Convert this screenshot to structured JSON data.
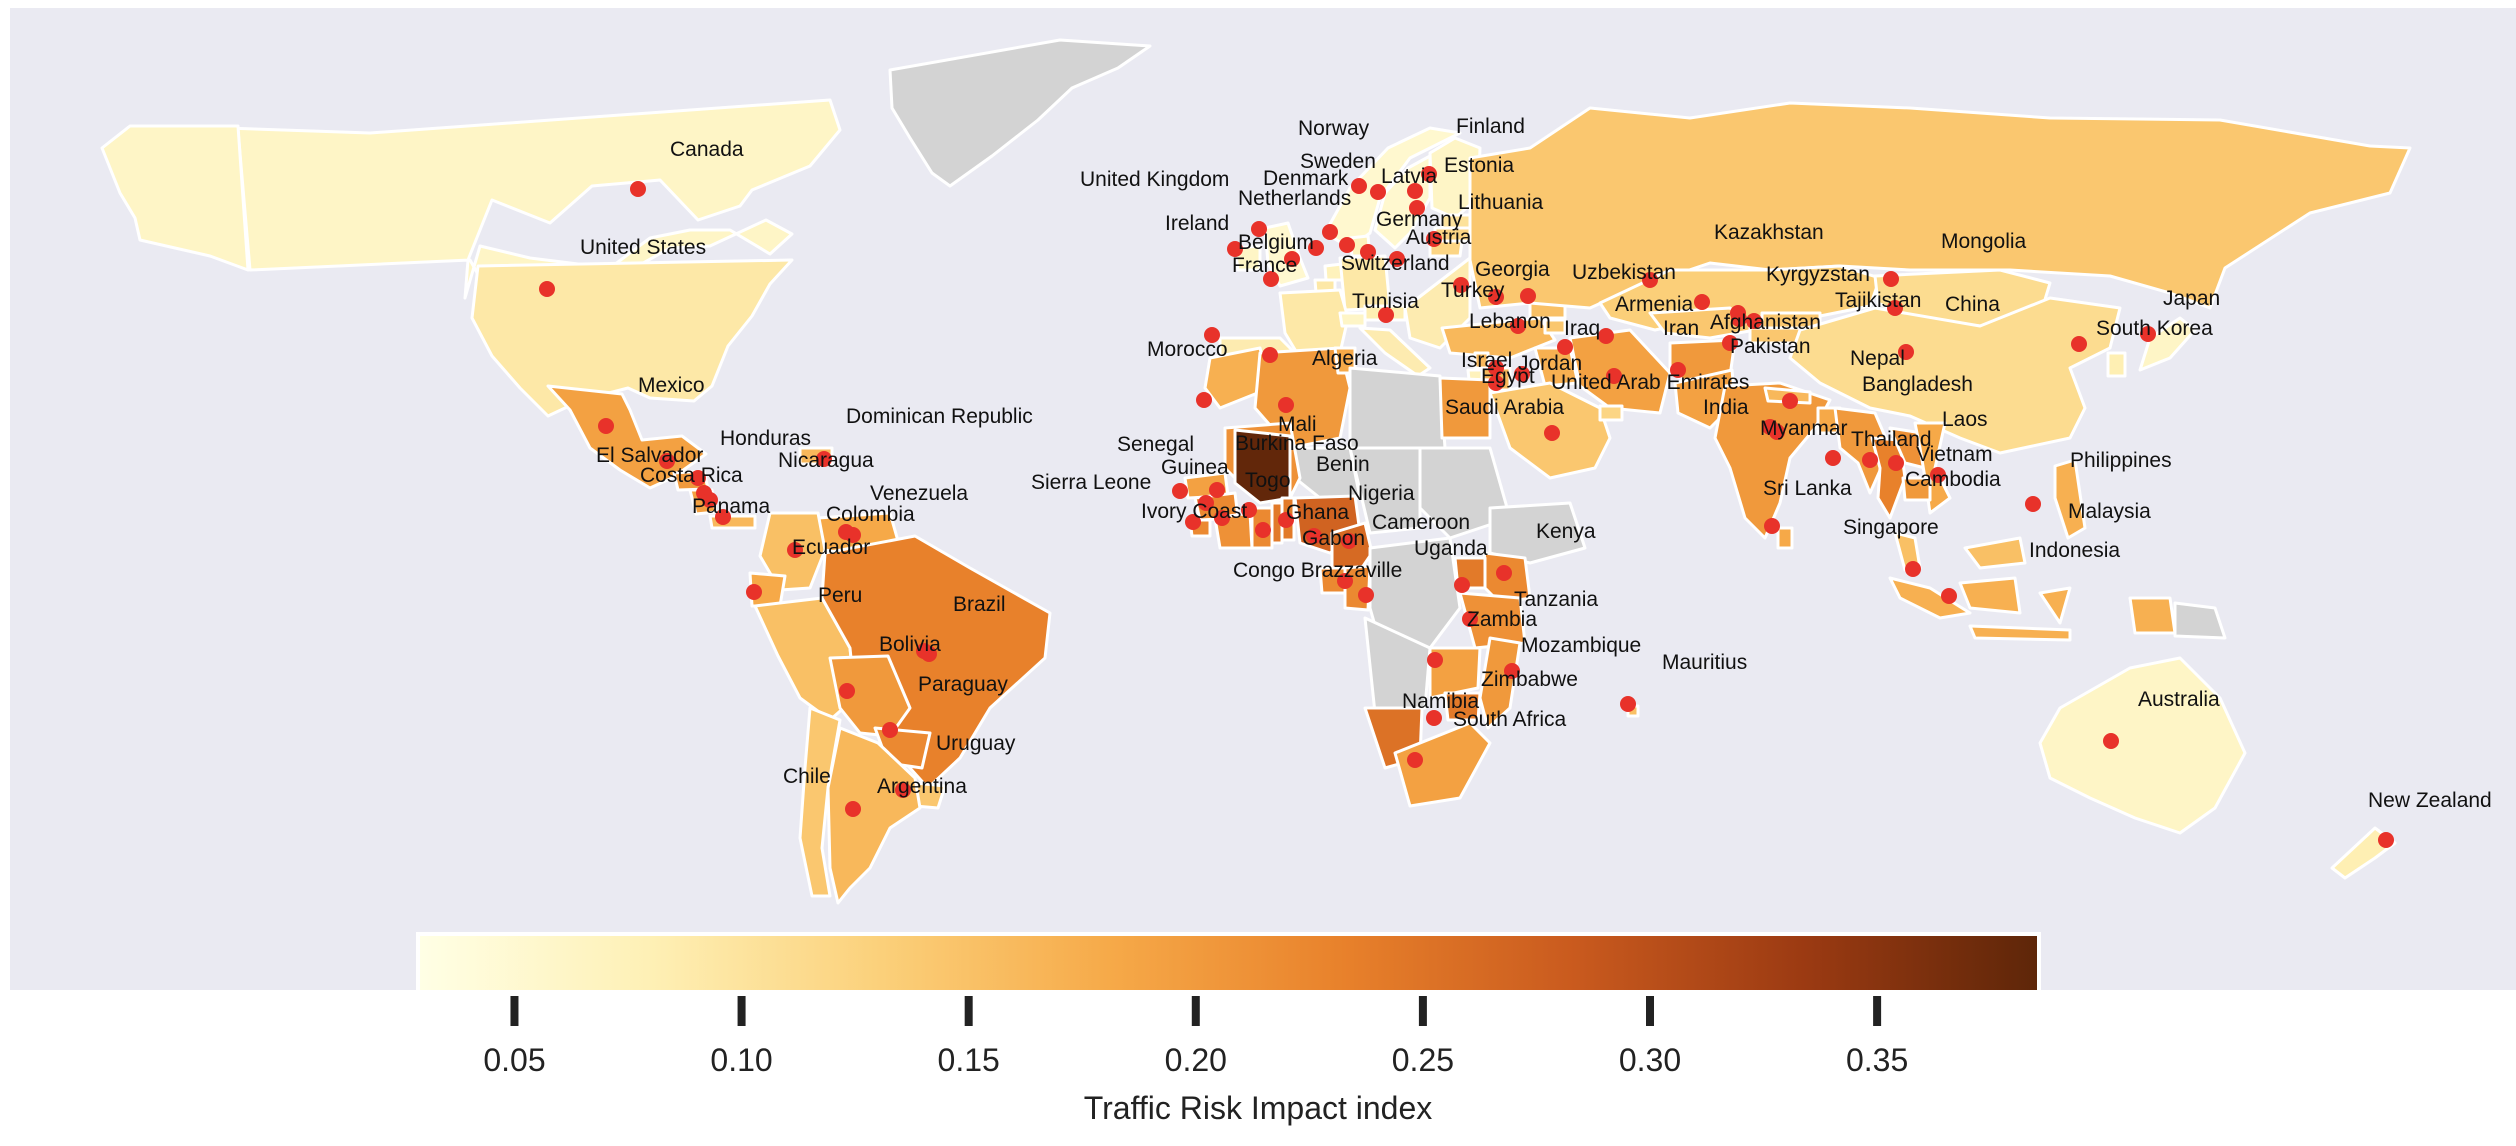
{
  "map": {
    "legend_title": "Traffic Risk Impact index",
    "colorbar": {
      "min": 0.027,
      "max": 0.383,
      "stops": [
        "#FFFFE5",
        "#FEF0B5",
        "#FBD07A",
        "#F6A948",
        "#E8812B",
        "#C95A1E",
        "#9B3A12",
        "#5E2609"
      ],
      "ticks": [
        "0.05",
        "0.10",
        "0.15",
        "0.20",
        "0.25",
        "0.30",
        "0.35"
      ]
    },
    "colors": {
      "no_data": "#D3D3D3",
      "ocean": "#EAEAF2",
      "dot": "#E8322A",
      "border": "#FFFFFF"
    },
    "countries": [
      {
        "name": "Canada",
        "value": 0.06,
        "show_label": true
      },
      {
        "name": "United States",
        "value": 0.09,
        "show_label": true
      },
      {
        "name": "Mexico",
        "value": 0.19,
        "show_label": true
      },
      {
        "name": "Honduras",
        "value": 0.2,
        "show_label": true
      },
      {
        "name": "Dominican Republic",
        "value": 0.16,
        "show_label": true
      },
      {
        "name": "El Salvador",
        "value": 0.19,
        "show_label": true
      },
      {
        "name": "Nicaragua",
        "value": 0.19,
        "show_label": true
      },
      {
        "name": "Costa Rica",
        "value": 0.15,
        "show_label": true
      },
      {
        "name": "Venezuela",
        "value": 0.18,
        "show_label": true
      },
      {
        "name": "Panama",
        "value": 0.16,
        "show_label": true
      },
      {
        "name": "Colombia",
        "value": 0.15,
        "show_label": true
      },
      {
        "name": "Ecuador",
        "value": 0.18,
        "show_label": true
      },
      {
        "name": "Peru",
        "value": 0.15,
        "show_label": true
      },
      {
        "name": "Brazil",
        "value": 0.23,
        "show_label": true
      },
      {
        "name": "Bolivia",
        "value": 0.2,
        "show_label": true
      },
      {
        "name": "Paraguay",
        "value": 0.22,
        "show_label": true
      },
      {
        "name": "Uruguay",
        "value": 0.14,
        "show_label": true
      },
      {
        "name": "Chile",
        "value": 0.14,
        "show_label": true
      },
      {
        "name": "Argentina",
        "value": 0.16,
        "show_label": true
      },
      {
        "name": "Norway",
        "value": 0.05,
        "show_label": true
      },
      {
        "name": "Finland",
        "value": 0.06,
        "show_label": true
      },
      {
        "name": "Sweden",
        "value": 0.05,
        "show_label": true
      },
      {
        "name": "Latvia",
        "value": 0.12,
        "show_label": true
      },
      {
        "name": "Estonia",
        "value": 0.1,
        "show_label": true
      },
      {
        "name": "United Kingdom",
        "value": 0.05,
        "show_label": true
      },
      {
        "name": "Denmark",
        "value": 0.07,
        "show_label": true
      },
      {
        "name": "Netherlands",
        "value": 0.07,
        "show_label": true
      },
      {
        "name": "Lithuania",
        "value": 0.12,
        "show_label": true
      },
      {
        "name": "Ireland",
        "value": 0.06,
        "show_label": true
      },
      {
        "name": "Germany",
        "value": 0.09,
        "show_label": true
      },
      {
        "name": "Belgium",
        "value": 0.09,
        "show_label": true
      },
      {
        "name": "Austria",
        "value": 0.08,
        "show_label": true
      },
      {
        "name": "France",
        "value": 0.09,
        "show_label": true
      },
      {
        "name": "Switzerland",
        "value": 0.06,
        "show_label": true
      },
      {
        "name": "Georgia",
        "value": 0.15,
        "show_label": true
      },
      {
        "name": "Uzbekistan",
        "value": 0.14,
        "show_label": true
      },
      {
        "name": "Turkey",
        "value": 0.16,
        "show_label": true
      },
      {
        "name": "Tunisia",
        "value": 0.18,
        "show_label": true
      },
      {
        "name": "Armenia",
        "value": 0.14,
        "show_label": true
      },
      {
        "name": "Lebanon",
        "value": 0.16,
        "show_label": true
      },
      {
        "name": "Iraq",
        "value": 0.17,
        "show_label": true
      },
      {
        "name": "Iran",
        "value": 0.19,
        "show_label": true
      },
      {
        "name": "Kazakhstan",
        "value": 0.13,
        "show_label": true
      },
      {
        "name": "Mongolia",
        "value": 0.11,
        "show_label": true
      },
      {
        "name": "Kyrgyzstan",
        "value": 0.14,
        "show_label": true
      },
      {
        "name": "Tajikistan",
        "value": 0.14,
        "show_label": true
      },
      {
        "name": "China",
        "value": 0.11,
        "show_label": true
      },
      {
        "name": "Japan",
        "value": 0.06,
        "show_label": true
      },
      {
        "name": "South Korea",
        "value": 0.08,
        "show_label": true
      },
      {
        "name": "Afghanistan",
        "value": 0.2,
        "show_label": true
      },
      {
        "name": "Pakistan",
        "value": 0.19,
        "show_label": true
      },
      {
        "name": "Nepal",
        "value": 0.16,
        "show_label": true
      },
      {
        "name": "Bangladesh",
        "value": 0.18,
        "show_label": true
      },
      {
        "name": "Israel",
        "value": 0.07,
        "show_label": true
      },
      {
        "name": "Jordan",
        "value": 0.16,
        "show_label": true
      },
      {
        "name": "Egypt",
        "value": 0.2,
        "show_label": true
      },
      {
        "name": "United Arab Emirates",
        "value": 0.12,
        "show_label": true
      },
      {
        "name": "India",
        "value": 0.2,
        "show_label": true
      },
      {
        "name": "Saudi Arabia",
        "value": 0.14,
        "show_label": true
      },
      {
        "name": "Morocco",
        "value": 0.17,
        "show_label": true
      },
      {
        "name": "Algeria",
        "value": 0.2,
        "show_label": true
      },
      {
        "name": "Mali",
        "value": 0.21,
        "show_label": true
      },
      {
        "name": "Senegal",
        "value": 0.19,
        "show_label": true
      },
      {
        "name": "Burkina Faso",
        "value": 0.38,
        "show_label": true
      },
      {
        "name": "Guinea",
        "value": 0.22,
        "show_label": true
      },
      {
        "name": "Benin",
        "value": 0.24,
        "show_label": true
      },
      {
        "name": "Sierra Leone",
        "value": 0.22,
        "show_label": true
      },
      {
        "name": "Togo",
        "value": 0.24,
        "show_label": true
      },
      {
        "name": "Nigeria",
        "value": 0.27,
        "show_label": true
      },
      {
        "name": "Ivory Coast",
        "value": 0.21,
        "show_label": true
      },
      {
        "name": "Ghana",
        "value": 0.22,
        "show_label": true
      },
      {
        "name": "Cameroon",
        "value": 0.26,
        "show_label": true
      },
      {
        "name": "Gabon",
        "value": 0.22,
        "show_label": true
      },
      {
        "name": "Kenya",
        "value": 0.22,
        "show_label": true
      },
      {
        "name": "Congo Brazzaville",
        "value": 0.22,
        "show_label": true
      },
      {
        "name": "Uganda",
        "value": 0.24,
        "show_label": true
      },
      {
        "name": "Tanzania",
        "value": 0.21,
        "show_label": true
      },
      {
        "name": "Zambia",
        "value": 0.19,
        "show_label": true
      },
      {
        "name": "Mozambique",
        "value": 0.2,
        "show_label": true
      },
      {
        "name": "Mauritius",
        "value": 0.15,
        "show_label": true
      },
      {
        "name": "Zimbabwe",
        "value": 0.24,
        "show_label": true
      },
      {
        "name": "Namibia",
        "value": 0.25,
        "show_label": true
      },
      {
        "name": "South Africa",
        "value": 0.19,
        "show_label": true
      },
      {
        "name": "Myanmar",
        "value": 0.2,
        "show_label": true
      },
      {
        "name": "Thailand",
        "value": 0.23,
        "show_label": true
      },
      {
        "name": "Laos",
        "value": 0.21,
        "show_label": true
      },
      {
        "name": "Vietnam",
        "value": 0.18,
        "show_label": true
      },
      {
        "name": "Philippines",
        "value": 0.17,
        "show_label": true
      },
      {
        "name": "Cambodia",
        "value": 0.2,
        "show_label": true
      },
      {
        "name": "Sri Lanka",
        "value": 0.18,
        "show_label": true
      },
      {
        "name": "Malaysia",
        "value": 0.15,
        "show_label": true
      },
      {
        "name": "Singapore",
        "value": 0.06,
        "show_label": true
      },
      {
        "name": "Indonesia",
        "value": 0.17,
        "show_label": true
      },
      {
        "name": "Australia",
        "value": 0.06,
        "show_label": true
      },
      {
        "name": "New Zealand",
        "value": 0.08,
        "show_label": true
      },
      {
        "name": "Russia",
        "value": 0.14,
        "show_label": false
      },
      {
        "name": "Greenland",
        "value": null,
        "show_label": false
      },
      {
        "name": "DR Congo",
        "value": null,
        "show_label": false
      },
      {
        "name": "Sudan",
        "value": null,
        "show_label": false
      },
      {
        "name": "Libya",
        "value": null,
        "show_label": false
      },
      {
        "name": "Chad",
        "value": null,
        "show_label": false
      },
      {
        "name": "Niger",
        "value": null,
        "show_label": false
      },
      {
        "name": "Ethiopia",
        "value": null,
        "show_label": false
      },
      {
        "name": "Angola",
        "value": null,
        "show_label": false
      }
    ]
  }
}
